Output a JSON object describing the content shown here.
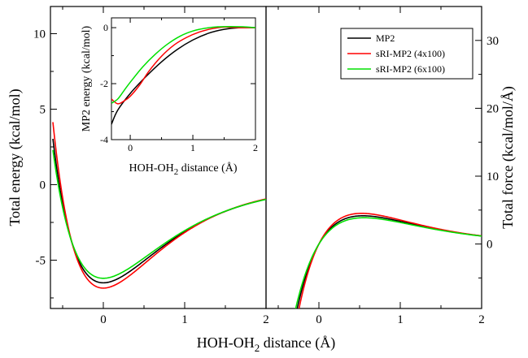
{
  "chart_data": {
    "type": "line",
    "curve_model": "morse",
    "left_panel": {
      "xlabel_main": "HOH-OH",
      "xlabel_sub": "2",
      "xlabel_tail": " distance (Å)",
      "ylabel": "Total energy (kcal/mol)",
      "xlim": [
        -0.65,
        2.0
      ],
      "ylim": [
        -8.2,
        11.8
      ],
      "xticks": [
        0,
        1,
        2
      ],
      "xtick_labels": [
        "0",
        "1",
        "2"
      ],
      "yticks": [
        -5,
        0,
        5,
        10
      ],
      "ytick_labels": [
        "-5",
        "0",
        "5",
        "10"
      ],
      "series": [
        {
          "name": "MP2",
          "color": "#000000",
          "params": {
            "D": 6.5,
            "x0": 0.0,
            "a": 1.28,
            "off": 0.0
          }
        },
        {
          "name": "sRI-MP2 (4x100)",
          "color": "#ff0000",
          "params": {
            "D": 6.85,
            "x0": 0.0,
            "a": 1.32,
            "off": 0.0
          }
        },
        {
          "name": "sRI-MP2 (6x100)",
          "color": "#00e000",
          "params": {
            "D": 6.2,
            "x0": 0.0,
            "a": 1.25,
            "off": 0.0
          }
        }
      ]
    },
    "right_panel": {
      "ylabel": "Total force (kcal/mol/Å)",
      "xlim": [
        -0.65,
        2.0
      ],
      "ylim": [
        -9.5,
        35.0
      ],
      "xticks": [
        0,
        1,
        2
      ],
      "xtick_labels": [
        "0",
        "1",
        "2"
      ],
      "yticks": [
        0,
        10,
        20,
        30
      ],
      "ytick_labels": [
        "0",
        "10",
        "20",
        "30"
      ],
      "series": [
        {
          "name": "MP2",
          "color": "#000000",
          "params": {
            "D": 6.5,
            "x0": 0.0,
            "a": 1.28
          }
        },
        {
          "name": "sRI-MP2 (4x100)",
          "color": "#ff0000",
          "params": {
            "D": 6.85,
            "x0": 0.0,
            "a": 1.32
          }
        },
        {
          "name": "sRI-MP2 (6x100)",
          "color": "#00e000",
          "params": {
            "D": 6.2,
            "x0": 0.0,
            "a": 1.25
          }
        }
      ],
      "legend": {
        "placement": "top-right",
        "entries": [
          "MP2",
          "sRI-MP2 (4x100)",
          "sRI-MP2 (6x100)"
        ]
      }
    },
    "inset": {
      "xlabel_main": "HOH-OH",
      "xlabel_sub": "2",
      "xlabel_tail": " distance (Å)",
      "ylabel": "MP2 energy (kcal/mol)",
      "xlim": [
        -0.3,
        2.0
      ],
      "ylim": [
        -4.0,
        0.35
      ],
      "xticks": [
        0,
        1,
        2
      ],
      "xtick_labels": [
        "0",
        "1",
        "2"
      ],
      "yticks": [
        -4,
        -2,
        0
      ],
      "ytick_labels": [
        "-4",
        "-2",
        "0"
      ],
      "series": [
        {
          "name": "MP2",
          "color": "#000000",
          "x": [
            -0.3,
            -0.2,
            0,
            0.25,
            0.5,
            0.75,
            1.0,
            1.25,
            1.5,
            1.75,
            2.0
          ],
          "y": [
            -3.45,
            -2.95,
            -2.35,
            -1.75,
            -1.22,
            -0.78,
            -0.44,
            -0.2,
            -0.06,
            0.0,
            0.0
          ]
        },
        {
          "name": "sRI-MP2 (4x100)",
          "color": "#ff0000",
          "x": [
            -0.3,
            -0.2,
            -0.1,
            0,
            0.15,
            0.3,
            0.5,
            0.7,
            0.9,
            1.1,
            1.3,
            1.5,
            1.75,
            2.0
          ],
          "y": [
            -2.55,
            -2.72,
            -2.62,
            -2.45,
            -2.05,
            -1.55,
            -1.02,
            -0.62,
            -0.35,
            -0.16,
            -0.04,
            0.02,
            0.0,
            0.0
          ]
        },
        {
          "name": "sRI-MP2 (6x100)",
          "color": "#00e000",
          "x": [
            -0.3,
            -0.2,
            -0.1,
            0,
            0.2,
            0.4,
            0.6,
            0.8,
            1.0,
            1.2,
            1.4,
            1.6,
            1.8,
            2.0
          ],
          "y": [
            -2.7,
            -2.55,
            -2.25,
            -1.95,
            -1.4,
            -0.95,
            -0.58,
            -0.3,
            -0.12,
            -0.02,
            0.03,
            0.04,
            0.03,
            0.0
          ]
        }
      ]
    }
  }
}
